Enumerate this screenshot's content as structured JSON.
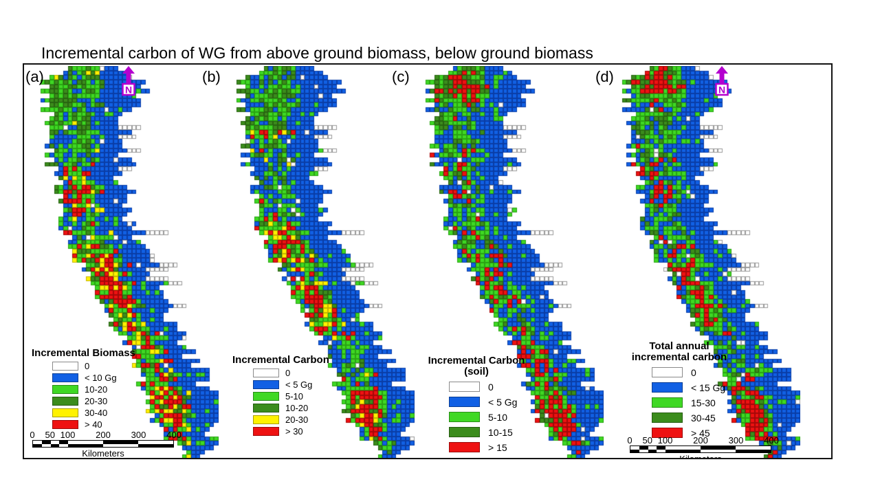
{
  "figure": {
    "title": "Incremental carbon of WG from above ground biomass, below ground biomass"
  },
  "north_arrow": {
    "letter": "N",
    "color": "#b400cf"
  },
  "scalebar": {
    "tick_labels": [
      "0",
      "50",
      "100",
      "200",
      "300",
      "400"
    ],
    "unit_label": "Kilometers"
  },
  "panels": [
    {
      "key": "a",
      "label": "(a)",
      "has_north_arrow": true,
      "has_scalebar": true,
      "legend": {
        "title_lines": [
          "Incremental Biomass"
        ],
        "items": [
          {
            "label": "0",
            "color": "#ffffff"
          },
          {
            "label": "< 10 Gg",
            "color": "#1160e4"
          },
          {
            "label": "10-20",
            "color": "#3fd824"
          },
          {
            "label": "20-30",
            "color": "#3b8c1c"
          },
          {
            "label": "30-40",
            "color": "#fff200"
          },
          {
            "label": "> 40",
            "color": "#ee1212"
          }
        ]
      }
    },
    {
      "key": "b",
      "label": "(b)",
      "has_north_arrow": false,
      "has_scalebar": false,
      "legend": {
        "title_lines": [
          "Incremental Carbon"
        ],
        "items": [
          {
            "label": "0",
            "color": "#ffffff"
          },
          {
            "label": "< 5 Gg",
            "color": "#1160e4"
          },
          {
            "label": "5-10",
            "color": "#3fd824"
          },
          {
            "label": "10-20",
            "color": "#3b8c1c"
          },
          {
            "label": "20-30",
            "color": "#fff200"
          },
          {
            "label": "> 30",
            "color": "#ee1212"
          }
        ]
      }
    },
    {
      "key": "c",
      "label": "(c)",
      "has_north_arrow": false,
      "has_scalebar": false,
      "legend": {
        "title_lines": [
          "Incremental Carbon",
          "(soil)"
        ],
        "items": [
          {
            "label": "0",
            "color": "#ffffff"
          },
          {
            "label": "< 5 Gg",
            "color": "#1160e4"
          },
          {
            "label": "5-10",
            "color": "#3fd824"
          },
          {
            "label": "10-15",
            "color": "#3b8c1c"
          },
          {
            "label": "> 15",
            "color": "#ee1212"
          }
        ]
      }
    },
    {
      "key": "d",
      "label": "(d)",
      "has_north_arrow": true,
      "has_scalebar": true,
      "legend": {
        "title_lines": [
          "Total annual",
          "incremental carbon"
        ],
        "items": [
          {
            "label": "0",
            "color": "#ffffff"
          },
          {
            "label": "< 15 Gg",
            "color": "#1160e4"
          },
          {
            "label": "15-30",
            "color": "#3fd824"
          },
          {
            "label": "30-45",
            "color": "#3b8c1c"
          },
          {
            "label": "> 45",
            "color": "#ee1212"
          }
        ]
      }
    }
  ],
  "map": {
    "cols": 40,
    "rows": 86,
    "cell": 6.65,
    "footprint_seed": 42,
    "shape": [
      [
        0,
        12,
        5
      ],
      [
        3,
        12,
        10
      ],
      [
        7,
        12,
        10
      ],
      [
        11,
        11,
        8
      ],
      [
        15,
        11,
        8
      ],
      [
        19,
        11,
        8
      ],
      [
        23,
        11,
        7
      ],
      [
        27,
        12,
        7
      ],
      [
        31,
        12,
        7
      ],
      [
        35,
        13,
        7
      ],
      [
        39,
        15,
        7
      ],
      [
        43,
        17,
        7
      ],
      [
        47,
        19,
        7
      ],
      [
        51,
        21,
        7
      ],
      [
        55,
        23,
        6
      ],
      [
        59,
        25,
        6
      ],
      [
        63,
        27,
        6
      ],
      [
        67,
        29,
        6
      ],
      [
        71,
        31,
        7
      ],
      [
        75,
        32,
        8
      ],
      [
        79,
        33,
        6
      ],
      [
        82,
        34,
        4
      ],
      [
        85,
        35,
        2
      ]
    ],
    "palette": {
      "white": {
        "fill": "#ffffff",
        "line": "#999999"
      },
      "blue": {
        "fill": "#1160e4",
        "line": "#0a3da6"
      },
      "lgreen": {
        "fill": "#3fd824",
        "line": "#2aa312"
      },
      "dgreen": {
        "fill": "#3b8c1c",
        "line": "#276310"
      },
      "yellow": {
        "fill": "#fff200",
        "line": "#c4b400"
      },
      "red": {
        "fill": "#ee1212",
        "line": "#a50808"
      }
    },
    "panel_render": [
      {
        "seed": 101,
        "yellow": true,
        "top_red_scale": 0.3,
        "red_bumps": [
          [
            2,
            3,
            0.3
          ],
          [
            27,
            5,
            0.8
          ],
          [
            46,
            7,
            1.8
          ],
          [
            61,
            5,
            0.9
          ],
          [
            75,
            6,
            1.6
          ]
        ]
      },
      {
        "seed": 202,
        "yellow": true,
        "top_red_scale": 0.3,
        "red_bumps": [
          [
            14,
            4,
            0.35
          ],
          [
            38,
            6,
            1.1
          ],
          [
            52,
            6,
            1.2
          ],
          [
            75,
            6,
            1.6
          ]
        ]
      },
      {
        "seed": 303,
        "yellow": false,
        "top_red_scale": 1,
        "red_bumps": [
          [
            4,
            3,
            1.7
          ],
          [
            24,
            5,
            0.75
          ],
          [
            45,
            8,
            1.0
          ],
          [
            62,
            5,
            0.95
          ],
          [
            76,
            6,
            1.7
          ]
        ]
      },
      {
        "seed": 404,
        "yellow": false,
        "top_red_scale": 1,
        "red_bumps": [
          [
            3,
            3,
            1.6
          ],
          [
            24,
            6,
            0.7
          ],
          [
            50,
            9,
            1.3
          ],
          [
            76,
            7,
            1.8
          ]
        ]
      }
    ]
  }
}
